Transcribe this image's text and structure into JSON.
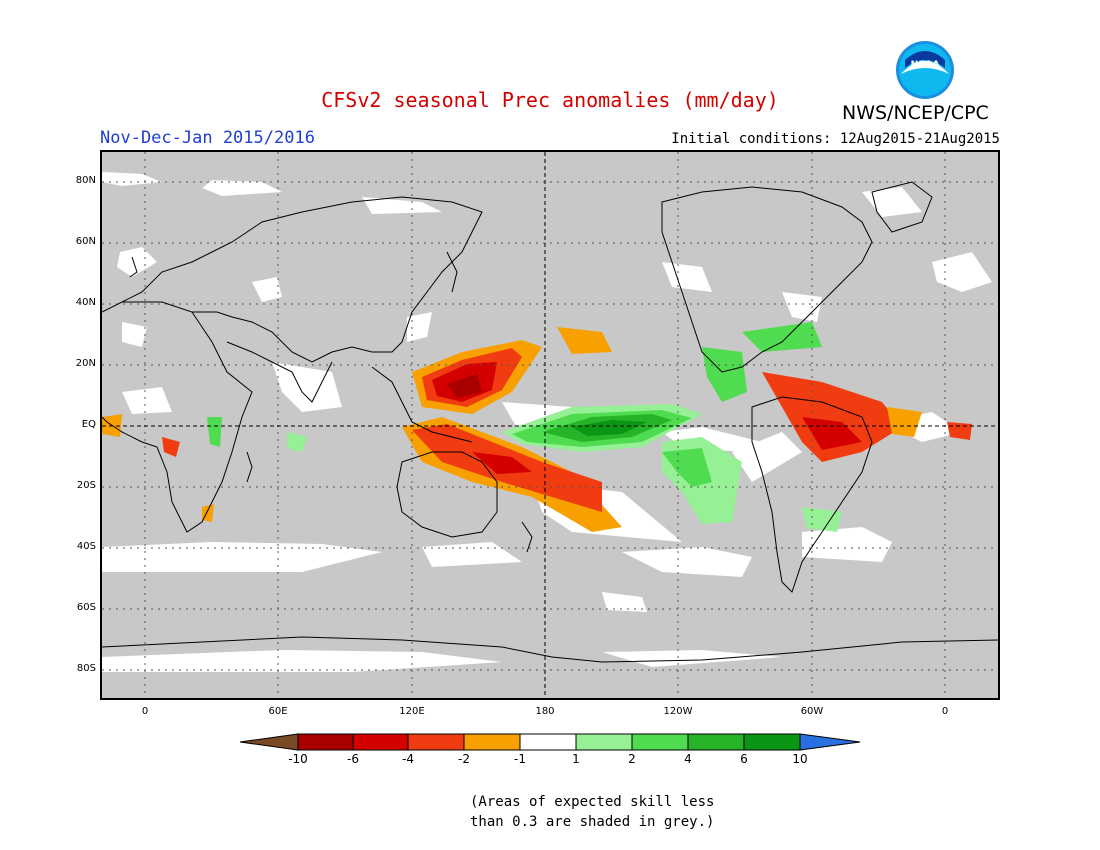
{
  "header": {
    "title": "CFSv2 seasonal Prec anomalies (mm/day)",
    "period": "Nov-Dec-Jan 2015/2016",
    "initial_conditions": "Initial conditions: 12Aug2015-21Aug2015",
    "agency": "NWS/NCEP/CPC",
    "logo_text": "NOAA"
  },
  "map": {
    "lat_labels": [
      "80N",
      "60N",
      "40N",
      "20N",
      "EQ",
      "20S",
      "40S",
      "60S",
      "80S"
    ],
    "lon_labels": [
      "0",
      "60E",
      "120E",
      "180",
      "120W",
      "60W",
      "0"
    ],
    "colors": {
      "no_skill": "#c8c8c8",
      "land_outline": "#000000",
      "grid": "#555555"
    }
  },
  "colorbar": {
    "labels": [
      "-10",
      "-6",
      "-4",
      "-2",
      "-1",
      "1",
      "2",
      "4",
      "6",
      "10"
    ],
    "colors": [
      "#7a4a26",
      "#a80000",
      "#d40000",
      "#f03c10",
      "#f8a000",
      "#ffffff",
      "#96f096",
      "#50dc50",
      "#28b428",
      "#0a9614",
      "#2870e0"
    ]
  },
  "note": {
    "line1": "(Areas of expected skill less",
    "line2": "than 0.3 are shaded in grey.)"
  }
}
